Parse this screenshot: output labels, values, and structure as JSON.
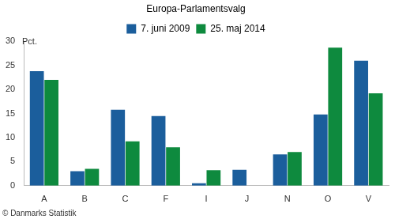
{
  "chart_data": {
    "type": "bar",
    "title": "Europa-Parlamentsvalg",
    "ylabel": "Pct.",
    "source": "© Danmarks Statistik",
    "categories": [
      "A",
      "B",
      "C",
      "F",
      "I",
      "J",
      "N",
      "O",
      "V"
    ],
    "series": [
      {
        "name": "7. juni 2009",
        "color": "#1b5e9c",
        "values": [
          23.8,
          3.0,
          15.8,
          14.5,
          0.5,
          3.3,
          6.5,
          14.8,
          26.0
        ]
      },
      {
        "name": "25. maj 2014",
        "color": "#0e8a3e",
        "values": [
          22.0,
          3.5,
          9.2,
          8.0,
          3.2,
          null,
          7.0,
          28.7,
          19.2
        ]
      }
    ],
    "ylim": [
      0,
      30
    ],
    "yticks": [
      0,
      5,
      10,
      15,
      20,
      25,
      30
    ],
    "grid": false,
    "legend": "top"
  }
}
